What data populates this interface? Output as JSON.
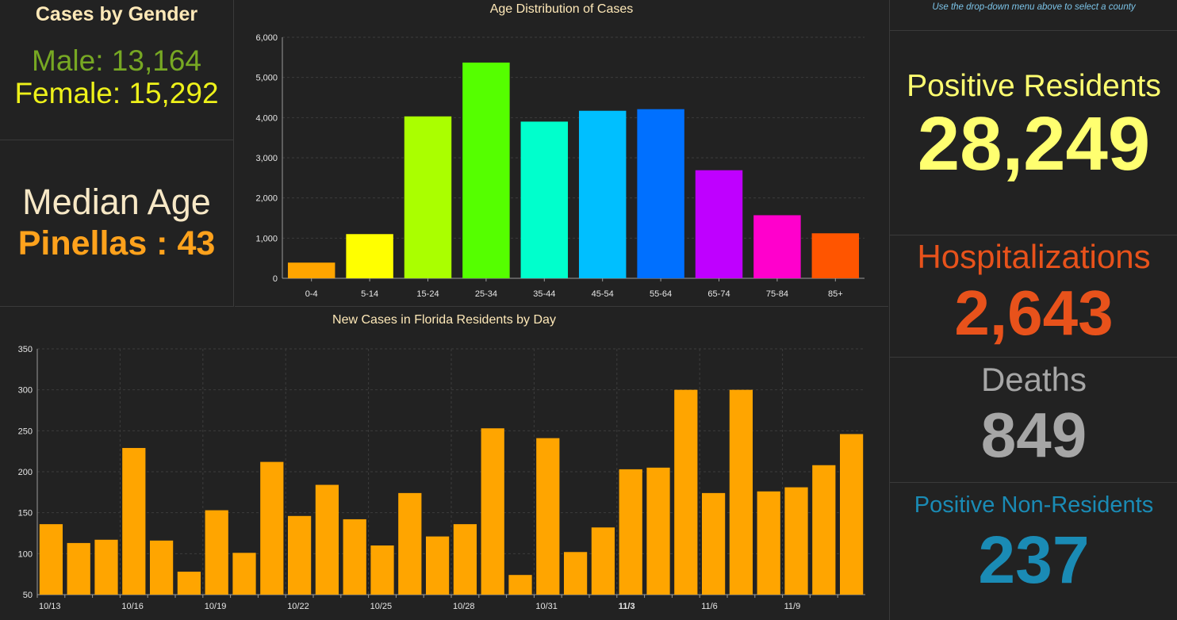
{
  "gender": {
    "title": "Cases by Gender",
    "male": "Male: 13,164",
    "female": "Female: 15,292",
    "male_color": "#77a823",
    "female_color": "#eef11a"
  },
  "median_age": {
    "label": "Median Age",
    "value": "Pinellas : 43"
  },
  "hint": "Use the drop-down menu above to select a county",
  "stats": {
    "positive_residents": {
      "label": "Positive Residents",
      "value": "28,249",
      "color": "#ffff70"
    },
    "hospitalizations": {
      "label": "Hospitalizations",
      "value": "2,643",
      "color": "#e8521b"
    },
    "deaths": {
      "label": "Deaths",
      "value": "849",
      "color": "#a6a6a6"
    },
    "positive_non_residents": {
      "label": "Positive Non-Residents",
      "value": "237",
      "color": "#1a8bb5"
    }
  },
  "chart_data": [
    {
      "type": "bar",
      "title": "Age Distribution of Cases",
      "categories": [
        "0-4",
        "5-14",
        "15-24",
        "25-34",
        "35-44",
        "45-54",
        "55-64",
        "65-74",
        "75-84",
        "85+"
      ],
      "values": [
        390,
        1100,
        4030,
        5370,
        3900,
        4170,
        4210,
        2690,
        1570,
        1120
      ],
      "colors": [
        "#ffa500",
        "#ffff00",
        "#aaff00",
        "#55ff00",
        "#00ffcc",
        "#00bfff",
        "#0070ff",
        "#bf00ff",
        "#ff00cc",
        "#ff5500"
      ],
      "yticks": [
        "0",
        "1,000",
        "2,000",
        "3,000",
        "4,000",
        "5,000",
        "6,000"
      ],
      "ylim": [
        0,
        6000
      ],
      "grid": true
    },
    {
      "type": "bar",
      "title": "New Cases in Florida Residents by Day",
      "x": [
        "10/13",
        "10/14",
        "10/15",
        "10/16",
        "10/17",
        "10/18",
        "10/19",
        "10/20",
        "10/21",
        "10/22",
        "10/23",
        "10/24",
        "10/25",
        "10/26",
        "10/27",
        "10/28",
        "10/29",
        "10/30",
        "10/31",
        "11/1",
        "11/2",
        "11/3",
        "11/4",
        "11/5",
        "11/6",
        "11/7",
        "11/8",
        "11/9",
        "11/10",
        "11/11"
      ],
      "values": [
        136,
        113,
        117,
        229,
        116,
        78,
        153,
        101,
        212,
        146,
        184,
        142,
        110,
        174,
        121,
        136,
        253,
        74,
        241,
        102,
        132,
        203,
        205,
        300,
        174,
        300,
        176,
        181,
        208,
        246
      ],
      "xtick_labels": [
        "10/13",
        "10/16",
        "10/19",
        "10/22",
        "10/25",
        "10/28",
        "10/31",
        "11/3",
        "11/6",
        "11/9"
      ],
      "bold_tick": "11/3",
      "yticks": [
        "50",
        "100",
        "150",
        "200",
        "250",
        "300",
        "350"
      ],
      "ylim": [
        50,
        350
      ],
      "bar_color": "#ffa500",
      "grid": true
    }
  ]
}
